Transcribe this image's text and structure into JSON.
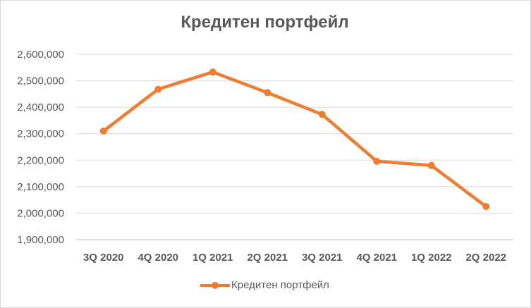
{
  "chart_data": {
    "type": "line",
    "title": "Кредитен портфейл",
    "xlabel": "",
    "ylabel": "",
    "categories": [
      "3Q 2020",
      "4Q 2020",
      "1Q 2021",
      "2Q 2021",
      "3Q 2021",
      "4Q 2021",
      "1Q 2022",
      "2Q 2022"
    ],
    "series": [
      {
        "name": "Кредитен портфейл",
        "values": [
          2310000,
          2468000,
          2533000,
          2455000,
          2373000,
          2196000,
          2180000,
          2025000
        ]
      }
    ],
    "ylim": [
      1900000,
      2600000
    ],
    "yticks": [
      "1,900,000",
      "2,000,000",
      "2,100,000",
      "2,200,000",
      "2,300,000",
      "2,400,000",
      "2,500,000",
      "2,600,000"
    ],
    "grid": true,
    "legend_position": "bottom",
    "color": "#ED7D31"
  }
}
